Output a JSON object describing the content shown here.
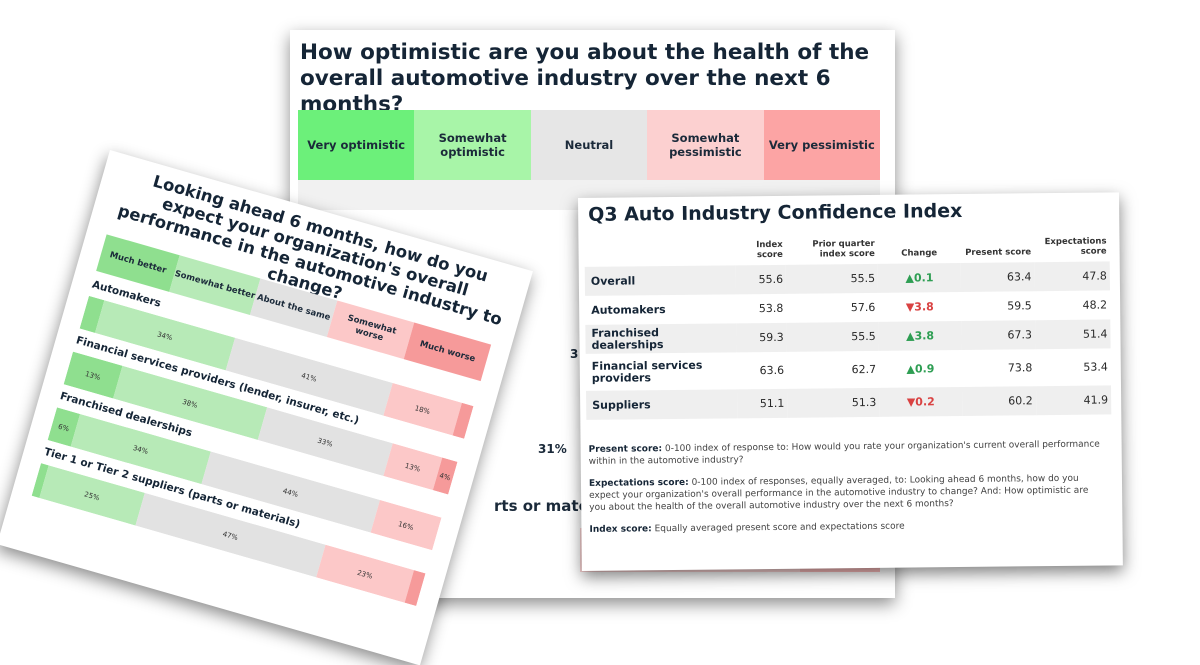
{
  "optimism_card": {
    "question": "How optimistic are you about the health of the overall automotive industry over the next 6 months?",
    "legend": [
      {
        "label": "Very optimistic",
        "color": "#6cf07a"
      },
      {
        "label": "Somewhat optimistic",
        "color": "#a8f5a8"
      },
      {
        "label": "Neutral",
        "color": "#e6e6e6"
      },
      {
        "label": "Somewhat pessimistic",
        "color": "#fcd0d0"
      },
      {
        "label": "Very pessimistic",
        "color": "#fca4a4"
      }
    ],
    "visible_fragments": {
      "left_value": "3",
      "value": "31%",
      "suppliers_fragment": "rts or mate"
    }
  },
  "performance_card": {
    "question": "Looking ahead 6 months, how do you expect your organization's overall performance in the automotive industry to change?",
    "legend": [
      {
        "label": "Much better",
        "color": "#8fdf8f"
      },
      {
        "label": "Somewhat better",
        "color": "#b7eab7"
      },
      {
        "label": "About the same",
        "color": "#e2e2e2"
      },
      {
        "label": "Somewhat worse",
        "color": "#fcc8c8"
      },
      {
        "label": "Much worse",
        "color": "#f69a9a"
      }
    ]
  },
  "chart_data": {
    "type": "bar",
    "stacked": true,
    "orientation": "horizontal",
    "title": "Looking ahead 6 months, how do you expect your organization's overall performance in the automotive industry to change?",
    "categories": [
      "Automakers",
      "Financial services providers (lender, insurer, etc.)",
      "Franchised dealerships",
      "Tier 1 or Tier 2 suppliers (parts or materials)"
    ],
    "series": [
      {
        "name": "Much better",
        "values": [
          4,
          13,
          6,
          2
        ],
        "labels": [
          "",
          "13%",
          "6%",
          ""
        ]
      },
      {
        "name": "Somewhat better",
        "values": [
          34,
          38,
          34,
          25
        ],
        "labels": [
          "34%",
          "38%",
          "34%",
          "25%"
        ]
      },
      {
        "name": "About the same",
        "values": [
          41,
          33,
          44,
          47
        ],
        "labels": [
          "41%",
          "33%",
          "44%",
          "47%"
        ]
      },
      {
        "name": "Somewhat worse",
        "values": [
          18,
          13,
          16,
          23
        ],
        "labels": [
          "18%",
          "13%",
          "16%",
          "23%"
        ]
      },
      {
        "name": "Much worse",
        "values": [
          3,
          4,
          0,
          3
        ],
        "labels": [
          "",
          "4%",
          "",
          ""
        ]
      }
    ],
    "xlim": [
      0,
      100
    ]
  },
  "index_card": {
    "title": "Q3 Auto Industry Confidence Index",
    "headers": [
      "",
      "Index score",
      "Prior quarter index score",
      "Change",
      "Present score",
      "Expectations score"
    ],
    "rows": [
      {
        "name": "Overall",
        "index": "55.6",
        "prior": "55.5",
        "dir": "up",
        "change": "0.1",
        "present": "63.4",
        "expect": "47.8"
      },
      {
        "name": "Automakers",
        "index": "53.8",
        "prior": "57.6",
        "dir": "down",
        "change": "3.8",
        "present": "59.5",
        "expect": "48.2"
      },
      {
        "name": "Franchised dealerships",
        "index": "59.3",
        "prior": "55.5",
        "dir": "up",
        "change": "3.8",
        "present": "67.3",
        "expect": "51.4"
      },
      {
        "name": "Financial services providers",
        "index": "63.6",
        "prior": "62.7",
        "dir": "up",
        "change": "0.9",
        "present": "73.8",
        "expect": "53.4"
      },
      {
        "name": "Suppliers",
        "index": "51.1",
        "prior": "51.3",
        "dir": "down",
        "change": "0.2",
        "present": "60.2",
        "expect": "41.9"
      }
    ],
    "notes": [
      {
        "label": "Present score:",
        "text": " 0-100 index of response to: How would you rate your organization's current overall performance within in the automotive industry?"
      },
      {
        "label": "Expectations score:",
        "text": " 0-100 index of responses, equally averaged, to: Looking ahead 6 months, how do you expect your organization's overall performance in the automotive industry to change? And: How optimistic are you about the health of the overall automotive industry over the next 6 months?"
      },
      {
        "label": "Index score:",
        "text": " Equally averaged present score and expectations score"
      }
    ]
  }
}
